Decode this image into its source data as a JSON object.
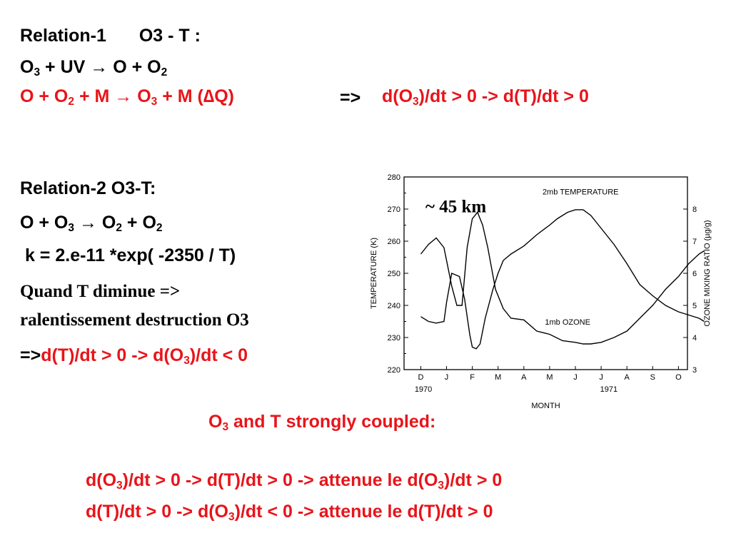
{
  "relation1": {
    "title": "Relation-1",
    "subtitle": "O3 - T :",
    "eq1": {
      "a": "O",
      "a_sub": "3",
      "b": " + UV → O + O",
      "b_sub": "2"
    },
    "eq2": {
      "p1": "O  + O",
      "s1": "2",
      "p2": " + M → O",
      "s2": "3",
      "p3": " + M  (",
      "delta": "∆",
      "p4": "Q)"
    },
    "arrow": "=>",
    "result": {
      "p1": "d(O",
      "s1": "3",
      "p2": ")/dt > 0 -> d(T)/dt > 0"
    }
  },
  "relation2": {
    "title": "Relation-2  O3-T:",
    "eq": {
      "p1": "O + O",
      "s1": "3",
      "p2": " → O",
      "s2": "2",
      "p3": " + O",
      "s3": "2"
    },
    "rate": " k = 2.e-11 *exp( -2350 / T)",
    "line1": "Quand T diminue =>",
    "line2": "ralentissement destruction O3",
    "conclusion": {
      "prefix": "=>",
      "p1": "d(T)/dt > 0 -> d(O",
      "s1": "3",
      "p2": ")/dt < 0"
    }
  },
  "coupled": {
    "p1": "O",
    "s1": "3",
    "p2": " and T strongly coupled:"
  },
  "summary": {
    "line1": {
      "p1": "d(O",
      "s1": "3",
      "p2": ")/dt > 0 -> d(T)/dt > 0 -> attenue le d(O",
      "s2": "3",
      "p3": ")/dt > 0"
    },
    "line2": {
      "p1": "d(T)/dt > 0 -> d(O",
      "s1": "3",
      "p2": ")/dt < 0 -> attenue le d(T)/dt  > 0"
    }
  },
  "colors": {
    "text": "#000000",
    "accent": "#e8141a"
  },
  "chart_data": {
    "type": "line",
    "annotation": "~ 45 km",
    "ylabel_left": "TEMPERATURE (K)",
    "ylabel_right": "OZONE MIXING RATIO (µg/g)",
    "xlabel": "MONTH",
    "ylim_left": [
      220,
      280
    ],
    "ylim_right": [
      3,
      9
    ],
    "yticks_left": [
      "220",
      "230",
      "240",
      "250",
      "260",
      "270",
      "280"
    ],
    "yticks_right": [
      "3",
      "4",
      "5",
      "6",
      "7",
      "8"
    ],
    "months": [
      "D",
      "J",
      "F",
      "M",
      "A",
      "M",
      "J",
      "J",
      "A",
      "S",
      "O"
    ],
    "years": [
      "1970",
      "1971"
    ],
    "series": [
      {
        "name": "2mb TEMPERATURE",
        "axis": "left",
        "x": [
          0,
          0.3,
          0.6,
          0.9,
          1.0,
          1.2,
          1.5,
          1.7,
          1.9,
          2.0,
          2.15,
          2.3,
          2.5,
          2.8,
          3.0,
          3.2,
          3.5,
          4.0,
          4.5,
          5.0,
          5.3,
          5.7,
          6.0,
          6.3,
          6.6,
          7.0,
          7.5,
          8.0,
          8.5,
          9.0,
          9.5,
          10.0,
          10.4,
          10.8,
          11.0
        ],
        "y": [
          236.5,
          235,
          234.5,
          235,
          241,
          250,
          249,
          242,
          231,
          227,
          226.5,
          228,
          236,
          245,
          250,
          254,
          256,
          258.5,
          262,
          265,
          267,
          269,
          269.8,
          269.8,
          268,
          264,
          259,
          253,
          246.5,
          243,
          240,
          238,
          237,
          236,
          235
        ]
      },
      {
        "name": "1mb OZONE",
        "axis": "right",
        "x": [
          0,
          0.3,
          0.6,
          0.9,
          1.2,
          1.4,
          1.6,
          1.8,
          2.0,
          2.2,
          2.4,
          2.6,
          2.9,
          3.2,
          3.5,
          4.0,
          4.5,
          5.0,
          5.5,
          6.0,
          6.3,
          6.6,
          7.0,
          7.5,
          8.0,
          8.5,
          9.0,
          9.5,
          10.0,
          10.4,
          10.8,
          11.0
        ],
        "y": [
          6.6,
          6.9,
          7.1,
          6.8,
          5.6,
          5.0,
          5.0,
          6.8,
          7.7,
          7.9,
          7.5,
          6.8,
          5.5,
          4.9,
          4.6,
          4.55,
          4.2,
          4.1,
          3.9,
          3.85,
          3.8,
          3.8,
          3.85,
          4.0,
          4.2,
          4.6,
          5.0,
          5.5,
          5.9,
          6.3,
          6.6,
          6.7
        ]
      }
    ]
  }
}
